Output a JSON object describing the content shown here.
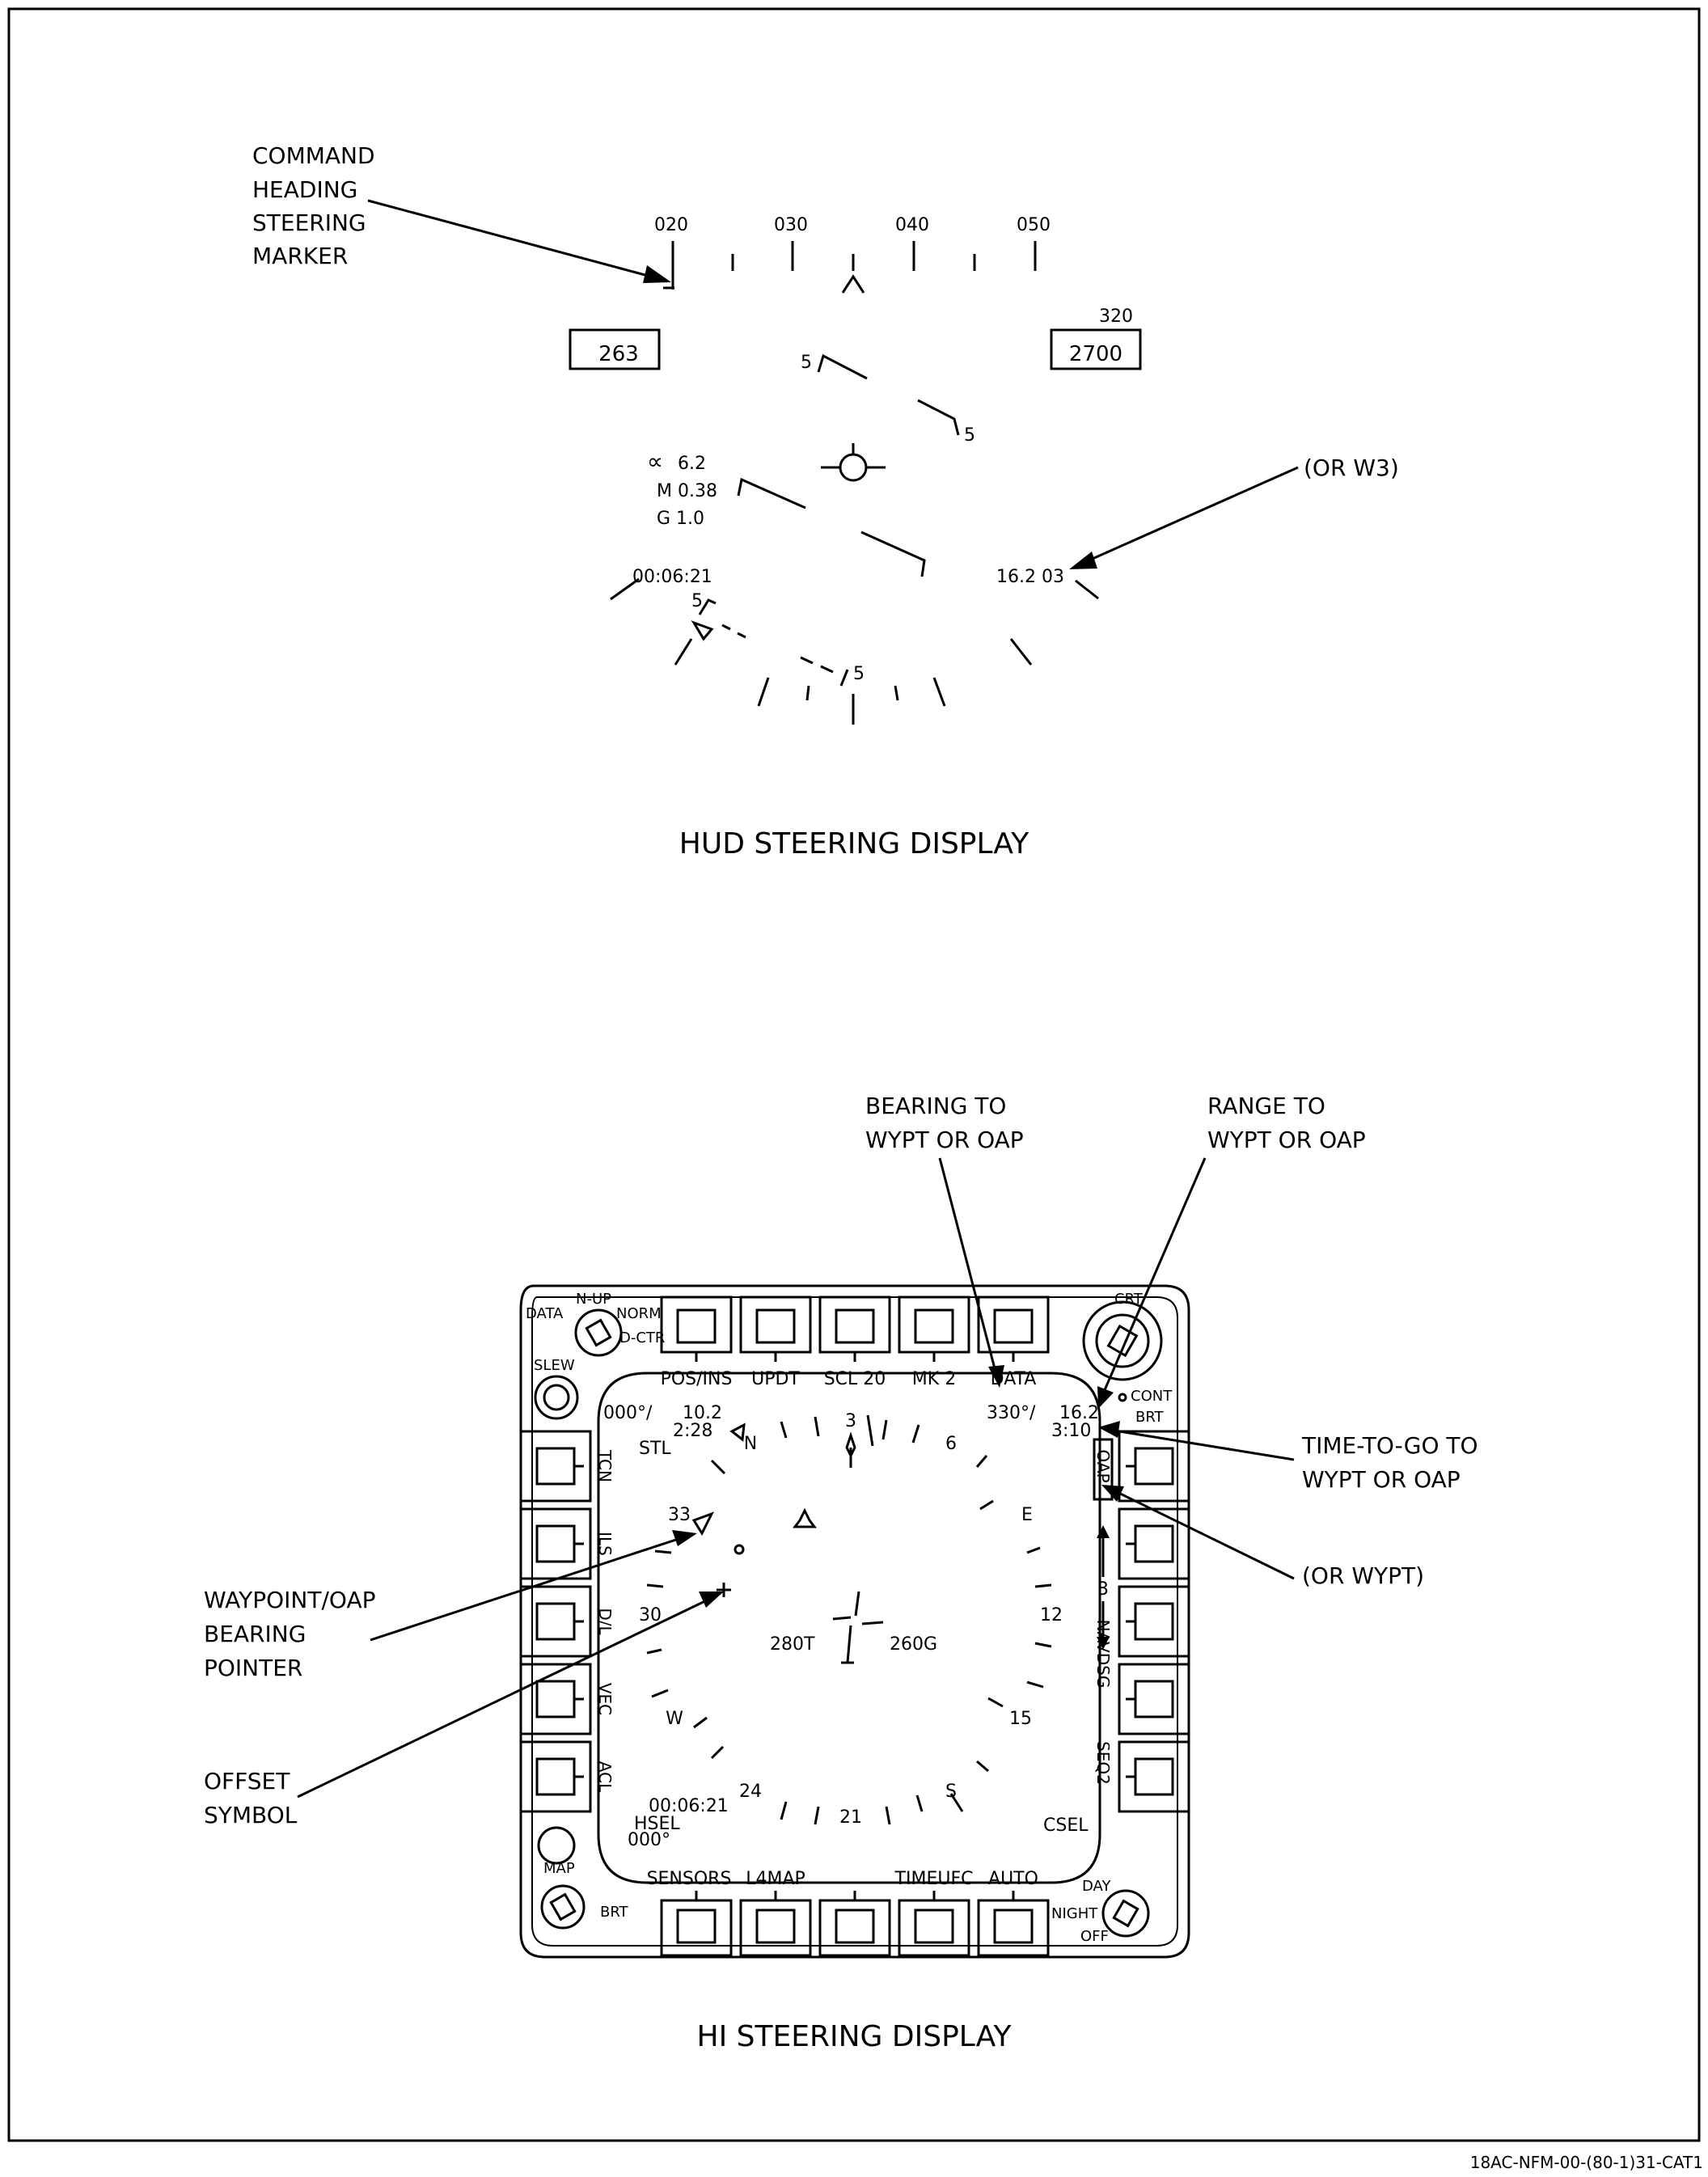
{
  "document": {
    "doc_id": "18AC-NFM-00-(80-1)31-CAT1"
  },
  "hud": {
    "title": "HUD STEERING DISPLAY",
    "callout_marker": [
      "COMMAND",
      "HEADING",
      "STEERING",
      "MARKER"
    ],
    "callout_w3": "(OR W3)",
    "heading_scale": [
      "020",
      "030",
      "040",
      "050"
    ],
    "airspeed": "263",
    "altitude": "2700",
    "altitude_label": "320",
    "alpha": "6.2",
    "mach": "M 0.38",
    "g_load": "G 1.0",
    "elapsed_time": "00:06:21",
    "range_readout": "16.2 03",
    "pitch_ladder_label": "5"
  },
  "hi": {
    "title": "HI STEERING DISPLAY",
    "callouts": {
      "bearing": [
        "BEARING TO",
        "WYPT OR OAP"
      ],
      "range": [
        "RANGE TO",
        "WYPT OR OAP"
      ],
      "time_to_go": [
        "TIME-TO-GO TO",
        "WYPT OR OAP"
      ],
      "or_wypt": "(OR WYPT)",
      "waypoint_pointer": [
        "WAYPOINT/OAP",
        "BEARING",
        "POINTER"
      ],
      "offset_symbol": [
        "OFFSET",
        "SYMBOL"
      ]
    },
    "top_buttons": [
      "POS/INS",
      "UPDT",
      "SCL 20",
      "MK 2",
      "DATA"
    ],
    "bottom_buttons": [
      "SENSORS",
      "L4MAP",
      "",
      "TIMEUFC",
      "AUTO"
    ],
    "left_buttons": [
      "TCN",
      "ILS",
      "D/L",
      "VEC",
      "ACL"
    ],
    "right_buttons": [
      "OAP",
      "3",
      "NAVDSG",
      "SEQ2"
    ],
    "knobs": {
      "mode_data": "DATA",
      "mode_nup": "N-UP",
      "mode_norm": "NORM",
      "mode_dctr": "D-CTR",
      "slew": "SLEW",
      "crt": "CRT",
      "cont": "CONT",
      "brt_top": "BRT",
      "map": "MAP",
      "brt_bottom": "BRT",
      "day": "DAY",
      "night": "NIGHT",
      "off": "OFF"
    },
    "readouts": {
      "top_left_course": "000°/",
      "top_left_range": "10.2",
      "top_left_time": "2:28",
      "stl": "STL",
      "bearing": "330°/",
      "range": "16.2",
      "time_to_go": "3:10",
      "true_heading": "280T",
      "ground_track": "260G",
      "elapsed": "00:06:21",
      "hsel_label": "HSEL",
      "hsel_value": "000°",
      "csel": "CSEL"
    },
    "compass": [
      "N",
      "3",
      "6",
      "E",
      "12",
      "15",
      "S",
      "21",
      "24",
      "W",
      "30",
      "33"
    ]
  }
}
